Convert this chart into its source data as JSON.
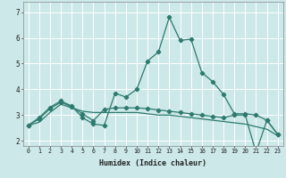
{
  "xlabel": "Humidex (Indice chaleur)",
  "bg_color": "#cce8e8",
  "grid_color": "#ffffff",
  "line_color": "#2d7a6e",
  "xlim": [
    -0.5,
    23.5
  ],
  "ylim": [
    1.8,
    7.4
  ],
  "xticks": [
    0,
    1,
    2,
    3,
    4,
    5,
    6,
    7,
    8,
    9,
    10,
    11,
    12,
    13,
    14,
    15,
    16,
    17,
    18,
    19,
    20,
    21,
    22,
    23
  ],
  "yticks": [
    2,
    3,
    4,
    5,
    6,
    7
  ],
  "series1_x": [
    0,
    1,
    2,
    3,
    4,
    5,
    6,
    7,
    8,
    9,
    10,
    11,
    12,
    13,
    14,
    15,
    16,
    17,
    18,
    19,
    20,
    21,
    22,
    23
  ],
  "series1_y": [
    2.6,
    2.9,
    3.3,
    3.55,
    3.35,
    2.9,
    2.65,
    2.6,
    3.85,
    3.7,
    4.0,
    5.1,
    5.45,
    6.8,
    5.9,
    5.95,
    4.65,
    4.3,
    3.8,
    3.05,
    3.05,
    3.0,
    2.8,
    2.25
  ],
  "series2_x": [
    0,
    1,
    2,
    3,
    4,
    5,
    6,
    7,
    8,
    9,
    10,
    11,
    12,
    13,
    14,
    15,
    16,
    17,
    18,
    19,
    20,
    21,
    22,
    23
  ],
  "series2_y": [
    2.6,
    2.72,
    3.1,
    3.42,
    3.28,
    3.15,
    3.1,
    3.1,
    3.1,
    3.1,
    3.1,
    3.05,
    3.0,
    3.0,
    2.95,
    2.9,
    2.85,
    2.8,
    2.75,
    2.7,
    2.65,
    2.55,
    2.45,
    2.2
  ],
  "series3_x": [
    0,
    1,
    2,
    3,
    4,
    5,
    6,
    7,
    8,
    9,
    10,
    11,
    12,
    13,
    14,
    15,
    16,
    17,
    18,
    19,
    20,
    21,
    22,
    23
  ],
  "series3_y": [
    2.6,
    2.85,
    3.25,
    3.5,
    3.32,
    3.05,
    2.78,
    3.22,
    3.28,
    3.28,
    3.28,
    3.25,
    3.2,
    3.15,
    3.1,
    3.05,
    3.0,
    2.95,
    2.9,
    3.0,
    3.0,
    1.55,
    2.8,
    2.25
  ]
}
